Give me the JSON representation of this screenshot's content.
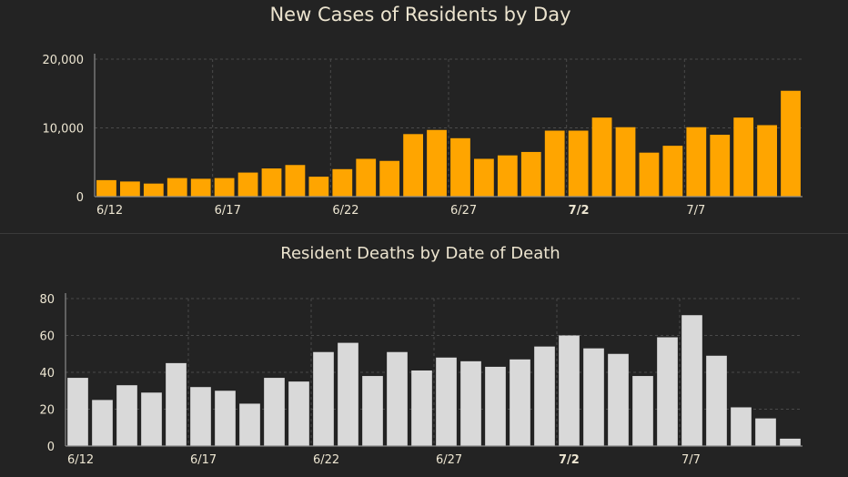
{
  "chart_data": [
    {
      "type": "bar",
      "title": "New Cases of Residents by Day",
      "color": "#FFA500",
      "categories": [
        "6/12",
        "6/13",
        "6/14",
        "6/15",
        "6/16",
        "6/17",
        "6/18",
        "6/19",
        "6/20",
        "6/21",
        "6/22",
        "6/23",
        "6/24",
        "6/25",
        "6/26",
        "6/27",
        "6/28",
        "6/29",
        "6/30",
        "7/1",
        "7/2",
        "7/3",
        "7/4",
        "7/5",
        "7/6",
        "7/7",
        "7/8",
        "7/9",
        "7/10",
        "7/11"
      ],
      "values": [
        2400,
        2200,
        1900,
        2700,
        2600,
        2700,
        3500,
        4100,
        4600,
        2900,
        4000,
        5500,
        5200,
        9100,
        9700,
        8500,
        5500,
        6000,
        6500,
        9600,
        9600,
        11500,
        10100,
        6400,
        7400,
        10100,
        9000,
        11500,
        10400,
        15400
      ],
      "ylim": [
        0,
        20000
      ],
      "yticks": [
        0,
        10000,
        20000
      ],
      "ytick_labels": [
        "0",
        "10,000",
        "20,000"
      ],
      "xtick_labels": [
        "6/12",
        "6/17",
        "6/22",
        "6/27",
        "7/2",
        "7/7"
      ],
      "bold_xtick": "7/2",
      "grid": true
    },
    {
      "type": "bar",
      "title": "Resident Deaths by Date of Death",
      "color": "#D9D9D9",
      "categories": [
        "6/12",
        "6/13",
        "6/14",
        "6/15",
        "6/16",
        "6/17",
        "6/18",
        "6/19",
        "6/20",
        "6/21",
        "6/22",
        "6/23",
        "6/24",
        "6/25",
        "6/26",
        "6/27",
        "6/28",
        "6/29",
        "6/30",
        "7/1",
        "7/2",
        "7/3",
        "7/4",
        "7/5",
        "7/6",
        "7/7",
        "7/8",
        "7/9",
        "7/10",
        "7/11"
      ],
      "values": [
        37,
        25,
        33,
        29,
        45,
        32,
        30,
        23,
        37,
        35,
        51,
        56,
        38,
        51,
        41,
        48,
        46,
        43,
        47,
        54,
        60,
        53,
        50,
        38,
        59,
        71,
        49,
        21,
        15,
        4
      ],
      "ylim": [
        0,
        80
      ],
      "yticks": [
        0,
        20,
        40,
        60,
        80
      ],
      "ytick_labels": [
        "0",
        "20",
        "40",
        "60",
        "80"
      ],
      "xtick_labels": [
        "6/12",
        "6/17",
        "6/22",
        "6/27",
        "7/2",
        "7/7"
      ],
      "bold_xtick": "7/2",
      "grid": true
    }
  ]
}
